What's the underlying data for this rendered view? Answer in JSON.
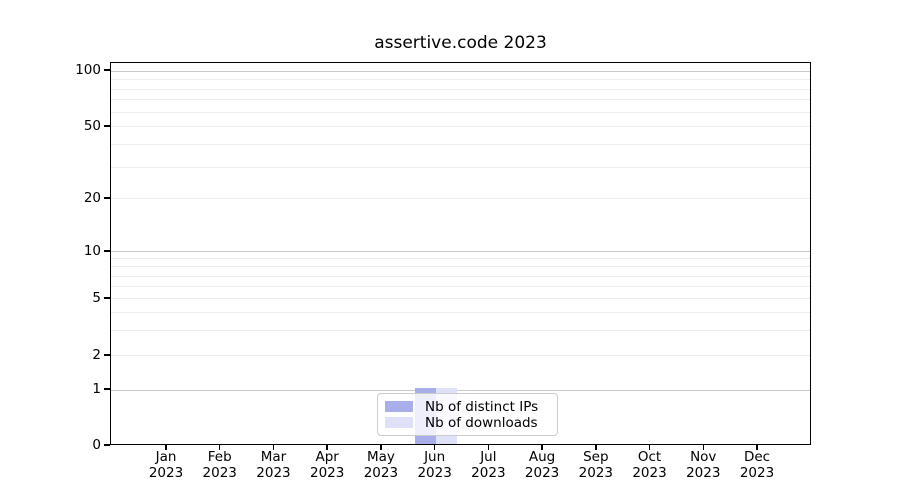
{
  "chart_data": {
    "type": "bar",
    "title": "assertive.code 2023",
    "categories": [
      "Jan",
      "Feb",
      "Mar",
      "Apr",
      "May",
      "Jun",
      "Jul",
      "Aug",
      "Sep",
      "Oct",
      "Nov",
      "Dec"
    ],
    "category_year": "2023",
    "series": [
      {
        "name": "Nb of distinct IPs",
        "color": "#a8aeea",
        "values": [
          0,
          0,
          0,
          0,
          0,
          1,
          0,
          0,
          0,
          0,
          0,
          0
        ]
      },
      {
        "name": "Nb of downloads",
        "color": "#dfe1f8",
        "values": [
          0,
          0,
          0,
          0,
          0,
          1,
          0,
          0,
          0,
          0,
          0,
          0
        ]
      }
    ],
    "xlabel": "",
    "ylabel": "",
    "y_ticks": [
      0,
      1,
      2,
      5,
      10,
      20,
      50,
      100
    ],
    "y_minor_ticks": [
      3,
      4,
      6,
      7,
      8,
      9,
      30,
      40,
      60,
      70,
      80,
      90
    ],
    "ylim": [
      0,
      113
    ],
    "y_scale": "compressed-log (linear 0-1, log-like above)",
    "grid": "horizontal, minor + major; decade lines (1,10,100) darker",
    "legend_position": "lower center, overlapping Jun bars",
    "colors": {
      "axis": "#000000",
      "grid_decade": "#c9c9c9",
      "grid_minor": "#ececec",
      "background": "#ffffff"
    }
  }
}
